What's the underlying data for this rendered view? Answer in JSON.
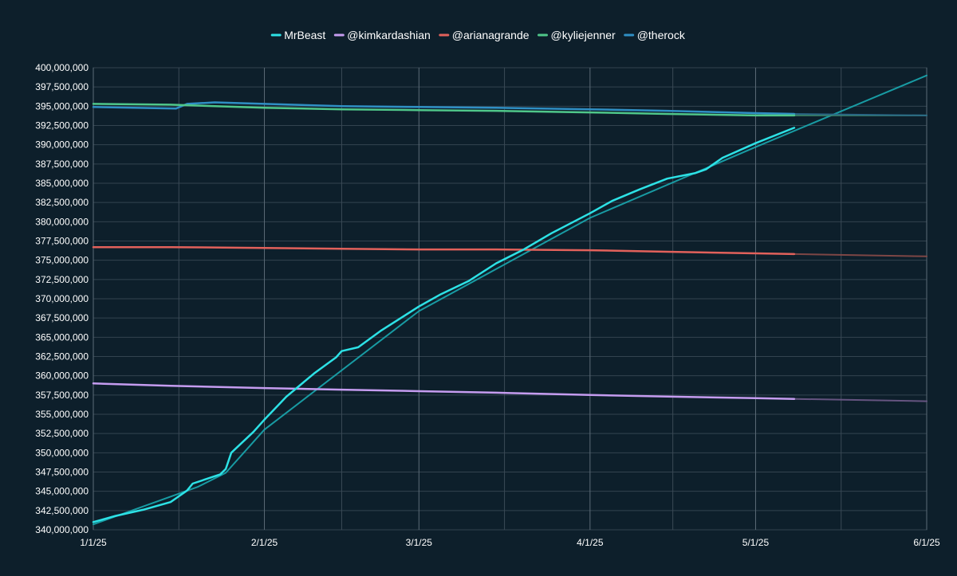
{
  "chart_data": {
    "type": "line",
    "title": "",
    "xlabel": "",
    "ylabel": "",
    "legend_position": "top-center",
    "grid": true,
    "xlim": [
      "2025-01-01",
      "2025-06-01"
    ],
    "ylim": [
      340000000,
      400000000
    ],
    "x_ticks": [
      {
        "date": "2025-01-01",
        "label": "1/1/25"
      },
      {
        "date": "2025-02-01",
        "label": "2/1/25"
      },
      {
        "date": "2025-03-01",
        "label": "3/1/25"
      },
      {
        "date": "2025-04-01",
        "label": "4/1/25"
      },
      {
        "date": "2025-05-01",
        "label": "5/1/25"
      },
      {
        "date": "2025-06-01",
        "label": "6/1/25"
      }
    ],
    "y_ticks": [
      {
        "value": 340000000,
        "label": "340,000,000"
      },
      {
        "value": 342500000,
        "label": "342,500,000"
      },
      {
        "value": 345000000,
        "label": "345,000,000"
      },
      {
        "value": 347500000,
        "label": "347,500,000"
      },
      {
        "value": 350000000,
        "label": "350,000,000"
      },
      {
        "value": 352500000,
        "label": "352,500,000"
      },
      {
        "value": 355000000,
        "label": "355,000,000"
      },
      {
        "value": 357500000,
        "label": "357,500,000"
      },
      {
        "value": 360000000,
        "label": "360,000,000"
      },
      {
        "value": 362500000,
        "label": "362,500,000"
      },
      {
        "value": 365000000,
        "label": "365,000,000"
      },
      {
        "value": 367500000,
        "label": "367,500,000"
      },
      {
        "value": 370000000,
        "label": "370,000,000"
      },
      {
        "value": 372500000,
        "label": "372,500,000"
      },
      {
        "value": 375000000,
        "label": "375,000,000"
      },
      {
        "value": 377500000,
        "label": "377,500,000"
      },
      {
        "value": 380000000,
        "label": "380,000,000"
      },
      {
        "value": 382500000,
        "label": "382,500,000"
      },
      {
        "value": 385000000,
        "label": "385,000,000"
      },
      {
        "value": 387500000,
        "label": "387,500,000"
      },
      {
        "value": 390000000,
        "label": "390,000,000"
      },
      {
        "value": 392500000,
        "label": "392,500,000"
      },
      {
        "value": 395000000,
        "label": "395,000,000"
      },
      {
        "value": 397500000,
        "label": "397,500,000"
      },
      {
        "value": 400000000,
        "label": "400,000,000"
      }
    ],
    "series": [
      {
        "name": "MrBeast",
        "color": "#2de2e6",
        "points": [
          [
            "2025-01-01",
            341000000
          ],
          [
            "2025-01-05",
            341800000
          ],
          [
            "2025-01-10",
            342600000
          ],
          [
            "2025-01-15",
            343600000
          ],
          [
            "2025-01-16",
            344100000
          ],
          [
            "2025-01-18",
            345100000
          ],
          [
            "2025-01-19",
            346000000
          ],
          [
            "2025-01-24",
            347200000
          ],
          [
            "2025-01-25",
            347900000
          ],
          [
            "2025-01-26",
            350000000
          ],
          [
            "2025-01-30",
            352700000
          ],
          [
            "2025-02-01",
            354300000
          ],
          [
            "2025-02-05",
            357300000
          ],
          [
            "2025-02-10",
            360300000
          ],
          [
            "2025-02-14",
            362400000
          ],
          [
            "2025-02-15",
            363200000
          ],
          [
            "2025-02-18",
            363700000
          ],
          [
            "2025-02-22",
            365800000
          ],
          [
            "2025-03-01",
            369000000
          ],
          [
            "2025-03-05",
            370600000
          ],
          [
            "2025-03-10",
            372300000
          ],
          [
            "2025-03-15",
            374600000
          ],
          [
            "2025-03-20",
            376400000
          ],
          [
            "2025-03-25",
            378500000
          ],
          [
            "2025-04-01",
            381100000
          ],
          [
            "2025-04-05",
            382700000
          ],
          [
            "2025-04-10",
            384200000
          ],
          [
            "2025-04-15",
            385600000
          ],
          [
            "2025-04-20",
            386300000
          ],
          [
            "2025-04-22",
            386800000
          ],
          [
            "2025-04-25",
            388300000
          ],
          [
            "2025-05-01",
            390200000
          ],
          [
            "2025-05-08",
            392200000
          ]
        ]
      },
      {
        "name": "@kimkardashian",
        "color": "#c59cf0",
        "points": [
          [
            "2025-01-01",
            359000000
          ],
          [
            "2025-01-15",
            358700000
          ],
          [
            "2025-02-01",
            358400000
          ],
          [
            "2025-02-15",
            358200000
          ],
          [
            "2025-03-01",
            358000000
          ],
          [
            "2025-03-15",
            357800000
          ],
          [
            "2025-04-01",
            357500000
          ],
          [
            "2025-04-15",
            357300000
          ],
          [
            "2025-05-01",
            357100000
          ],
          [
            "2025-05-08",
            357000000
          ]
        ]
      },
      {
        "name": "@arianagrande",
        "color": "#e2615b",
        "points": [
          [
            "2025-01-01",
            376700000
          ],
          [
            "2025-01-15",
            376700000
          ],
          [
            "2025-02-01",
            376600000
          ],
          [
            "2025-02-15",
            376500000
          ],
          [
            "2025-03-01",
            376400000
          ],
          [
            "2025-03-15",
            376400000
          ],
          [
            "2025-04-01",
            376300000
          ],
          [
            "2025-04-15",
            376100000
          ],
          [
            "2025-05-01",
            375900000
          ],
          [
            "2025-05-08",
            375800000
          ]
        ]
      },
      {
        "name": "@kyliejenner",
        "color": "#4fc78a",
        "points": [
          [
            "2025-01-01",
            395300000
          ],
          [
            "2025-01-15",
            395200000
          ],
          [
            "2025-02-01",
            394800000
          ],
          [
            "2025-02-15",
            394600000
          ],
          [
            "2025-03-01",
            394500000
          ],
          [
            "2025-03-15",
            394400000
          ],
          [
            "2025-04-01",
            394200000
          ],
          [
            "2025-04-15",
            394000000
          ],
          [
            "2025-05-01",
            393800000
          ],
          [
            "2025-05-08",
            393800000
          ]
        ]
      },
      {
        "name": "@therock",
        "color": "#2f8fc4",
        "points": [
          [
            "2025-01-01",
            394900000
          ],
          [
            "2025-01-16",
            394700000
          ],
          [
            "2025-01-18",
            395300000
          ],
          [
            "2025-01-23",
            395500000
          ],
          [
            "2025-02-01",
            395300000
          ],
          [
            "2025-02-15",
            395000000
          ],
          [
            "2025-03-01",
            394900000
          ],
          [
            "2025-03-15",
            394800000
          ],
          [
            "2025-04-01",
            394600000
          ],
          [
            "2025-04-15",
            394400000
          ],
          [
            "2025-05-01",
            394100000
          ],
          [
            "2025-05-08",
            394000000
          ]
        ]
      }
    ],
    "trendlines": [
      {
        "series": "MrBeast",
        "color": "#1aa8b0",
        "points": [
          [
            "2025-01-01",
            340700000
          ],
          [
            "2025-01-20",
            345600000
          ],
          [
            "2025-01-25",
            347400000
          ],
          [
            "2025-02-01",
            353000000
          ],
          [
            "2025-03-01",
            368400000
          ],
          [
            "2025-04-01",
            380500000
          ],
          [
            "2025-05-01",
            389700000
          ],
          [
            "2025-06-01",
            399000000
          ]
        ]
      },
      {
        "series": "@kimkardashian",
        "color": "#6f5a8a",
        "points": [
          [
            "2025-05-08",
            357000000
          ],
          [
            "2025-06-01",
            356700000
          ]
        ]
      },
      {
        "series": "@arianagrande",
        "color": "#8a4a48",
        "points": [
          [
            "2025-05-08",
            375800000
          ],
          [
            "2025-06-01",
            375500000
          ]
        ]
      },
      {
        "series": "@kyliejenner",
        "color": "#3d8a6a",
        "points": [
          [
            "2025-05-08",
            393800000
          ],
          [
            "2025-06-01",
            393800000
          ]
        ]
      },
      {
        "series": "@therock",
        "color": "#2a6a8c",
        "points": [
          [
            "2025-05-08",
            394000000
          ],
          [
            "2025-06-01",
            393800000
          ]
        ]
      }
    ]
  }
}
